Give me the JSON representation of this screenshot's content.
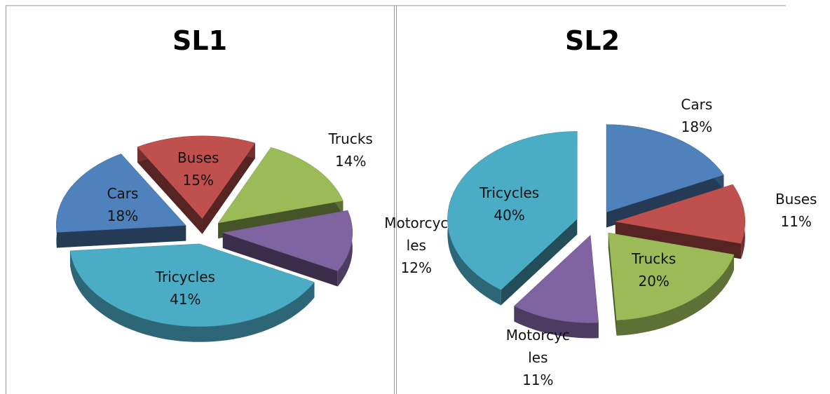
{
  "chart_data": [
    {
      "type": "pie",
      "title": "SL1",
      "categories": [
        "Cars",
        "Buses",
        "Trucks",
        "Motorcycles",
        "Tricycles"
      ],
      "values": [
        18,
        15,
        14,
        12,
        41
      ],
      "value_labels": [
        "18%",
        "15%",
        "14%",
        "12%",
        "41%"
      ],
      "colors": [
        "#4f81bd",
        "#c0504d",
        "#9bbb59",
        "#8064a2",
        "#4bacc6"
      ]
    },
    {
      "type": "pie",
      "title": "SL2",
      "categories": [
        "Cars",
        "Buses",
        "Trucks",
        "Motorcycles",
        "Tricycles"
      ],
      "values": [
        18,
        11,
        20,
        11,
        40
      ],
      "value_labels": [
        "18%",
        "11%",
        "20%",
        "11%",
        "40%"
      ],
      "colors": [
        "#4f81bd",
        "#c0504d",
        "#9bbb59",
        "#8064a2",
        "#4bacc6"
      ]
    }
  ]
}
